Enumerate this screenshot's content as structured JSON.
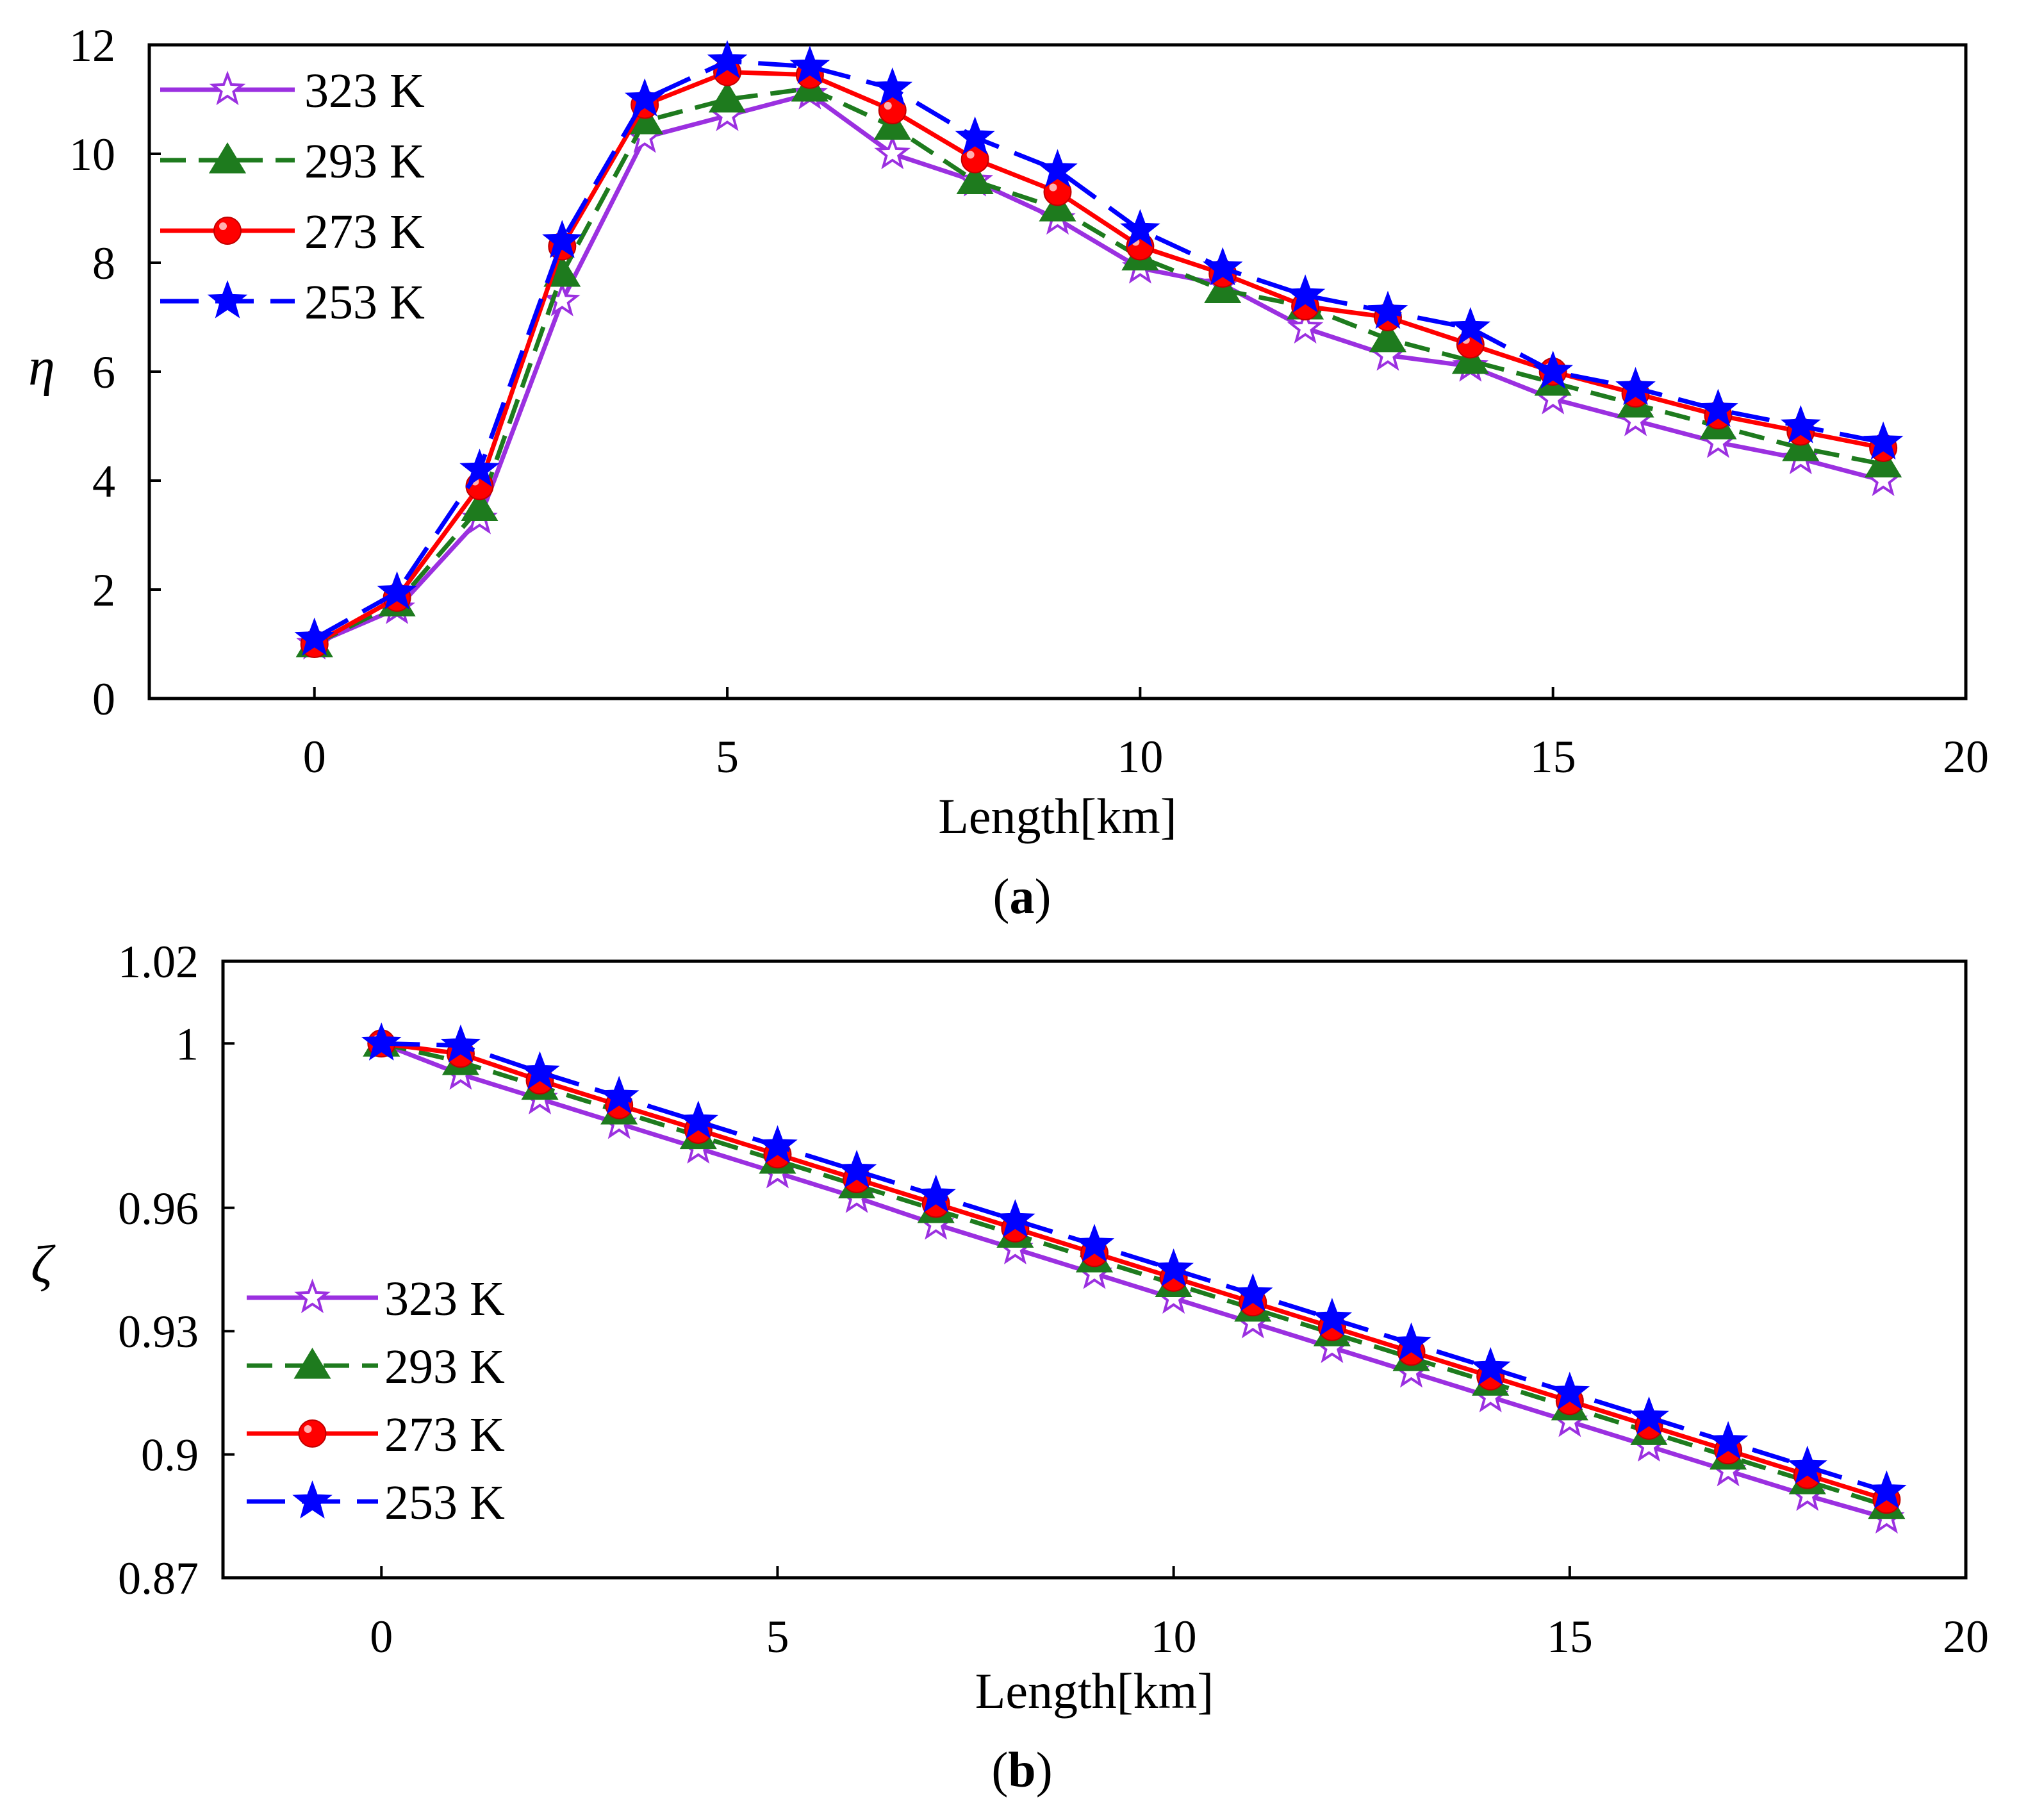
{
  "chart_data": [
    {
      "type": "line",
      "panel_label": "a",
      "title": "",
      "xlabel": "Length[km]",
      "ylabel": "η",
      "xlim": [
        -2,
        20
      ],
      "ylim": [
        0,
        12
      ],
      "x_ticks": [
        0,
        5,
        10,
        15,
        20
      ],
      "y_ticks": [
        0,
        2,
        4,
        6,
        8,
        10,
        12
      ],
      "legend_position": "top-left",
      "x": [
        0,
        1,
        2,
        3,
        4,
        5,
        6,
        7,
        8,
        9,
        10,
        11,
        12,
        13,
        14,
        15,
        16,
        17,
        18,
        19
      ],
      "series": [
        {
          "name": "323 K",
          "color": "#9B30E0",
          "dash": "solid",
          "marker": "star-open",
          "values": [
            1.0,
            1.65,
            3.3,
            7.3,
            10.3,
            10.7,
            11.1,
            10.0,
            9.5,
            8.8,
            7.9,
            7.6,
            6.8,
            6.3,
            6.1,
            5.5,
            5.1,
            4.7,
            4.4,
            4.0
          ]
        },
        {
          "name": "293 K",
          "color": "#1E7B1E",
          "dash": "dashed",
          "marker": "triangle",
          "values": [
            1.0,
            1.75,
            3.5,
            7.8,
            10.6,
            11.0,
            11.2,
            10.5,
            9.5,
            9.0,
            8.1,
            7.5,
            7.2,
            6.6,
            6.2,
            5.8,
            5.4,
            5.0,
            4.6,
            4.3
          ]
        },
        {
          "name": "273 K",
          "color": "#FF0000",
          "dash": "solid",
          "marker": "circle",
          "values": [
            1.0,
            1.85,
            3.9,
            8.3,
            10.9,
            11.5,
            11.45,
            10.8,
            9.9,
            9.3,
            8.3,
            7.8,
            7.2,
            7.0,
            6.5,
            6.0,
            5.6,
            5.2,
            4.9,
            4.6
          ]
        },
        {
          "name": "253 K",
          "color": "#0000FF",
          "dash": "long-dashed",
          "marker": "star",
          "values": [
            1.1,
            1.95,
            4.2,
            8.4,
            11.0,
            11.7,
            11.6,
            11.2,
            10.3,
            9.7,
            8.6,
            7.9,
            7.4,
            7.1,
            6.8,
            6.0,
            5.7,
            5.3,
            5.0,
            4.7
          ]
        }
      ]
    },
    {
      "type": "line",
      "panel_label": "b",
      "title": "",
      "xlabel": "Length[km]",
      "ylabel": "ζ",
      "xlim": [
        -2,
        20
      ],
      "ylim": [
        0.87,
        1.02
      ],
      "x_ticks": [
        0,
        5,
        10,
        15,
        20
      ],
      "y_ticks": [
        0.87,
        0.9,
        0.93,
        0.96,
        1,
        1.02
      ],
      "y_tick_labels": [
        "0.87",
        "0.9",
        "0.93",
        "0.96",
        "1",
        "1.02"
      ],
      "legend_position": "bottom-left",
      "x": [
        0,
        1,
        2,
        3,
        4,
        5,
        6,
        7,
        8,
        9,
        10,
        11,
        12,
        13,
        14,
        15,
        16,
        17,
        18,
        19
      ],
      "series": [
        {
          "name": "323 K",
          "color": "#9B30E0",
          "dash": "solid",
          "marker": "star-open",
          "values": [
            1.0,
            0.9925,
            0.9865,
            0.9805,
            0.9745,
            0.9685,
            0.9625,
            0.956,
            0.95,
            0.944,
            0.938,
            0.932,
            0.926,
            0.92,
            0.914,
            0.908,
            0.902,
            0.896,
            0.89,
            0.8845
          ]
        },
        {
          "name": "293 K",
          "color": "#1E7B1E",
          "dash": "dashed",
          "marker": "triangle",
          "values": [
            1.0,
            0.9955,
            0.9895,
            0.9835,
            0.9775,
            0.9715,
            0.9655,
            0.9595,
            0.9535,
            0.9475,
            0.9415,
            0.9355,
            0.9295,
            0.9235,
            0.9175,
            0.9115,
            0.9055,
            0.8995,
            0.8935,
            0.8875
          ]
        },
        {
          "name": "273 K",
          "color": "#FF0000",
          "dash": "solid",
          "marker": "circle",
          "values": [
            1.0,
            0.9975,
            0.991,
            0.985,
            0.979,
            0.973,
            0.967,
            0.961,
            0.955,
            0.949,
            0.943,
            0.937,
            0.931,
            0.925,
            0.919,
            0.913,
            0.907,
            0.901,
            0.895,
            0.889
          ]
        },
        {
          "name": "253 K",
          "color": "#0000FF",
          "dash": "long-dashed",
          "marker": "star",
          "values": [
            1.0,
            0.9995,
            0.993,
            0.987,
            0.981,
            0.975,
            0.969,
            0.963,
            0.957,
            0.951,
            0.945,
            0.939,
            0.933,
            0.927,
            0.921,
            0.915,
            0.909,
            0.903,
            0.897,
            0.891
          ]
        }
      ]
    }
  ]
}
